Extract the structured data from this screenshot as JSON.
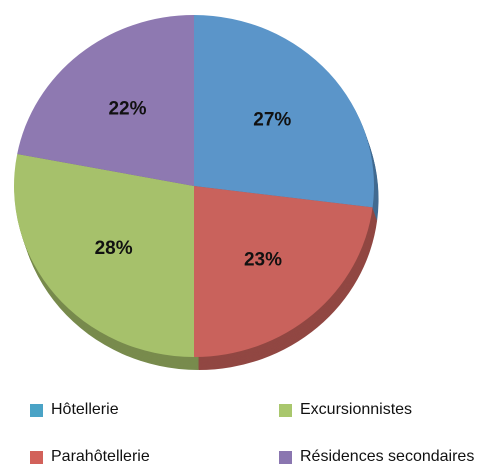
{
  "chart_data": {
    "type": "pie",
    "start_angle_deg": 0,
    "direction": "clockwise",
    "slices": [
      {
        "label": "Hôtellerie",
        "value": 27,
        "display": "27%",
        "color": "#5b95c9",
        "legend_color": "#4aa3c6"
      },
      {
        "label": "Parahôtellerie",
        "value": 23,
        "display": "23%",
        "color": "#c9625c",
        "legend_color": "#d2615a"
      },
      {
        "label": "Excursionnistes",
        "value": 28,
        "display": "28%",
        "color": "#a6c16b",
        "legend_color": "#a9c76d"
      },
      {
        "label": "Résidences secondaires",
        "value": 22,
        "display": "22%",
        "color": "#8e79b1",
        "legend_color": "#8a76b0"
      }
    ],
    "legend_position": "bottom"
  },
  "legend": {
    "items": [
      {
        "label": "Hôtellerie",
        "color": "#4aa3c6"
      },
      {
        "label": "Excursionnistes",
        "color": "#a9c76d"
      },
      {
        "label": "Parahôtellerie",
        "color": "#d2615a"
      },
      {
        "label": "Résidences secondaires",
        "color": "#8a76b0"
      }
    ]
  }
}
